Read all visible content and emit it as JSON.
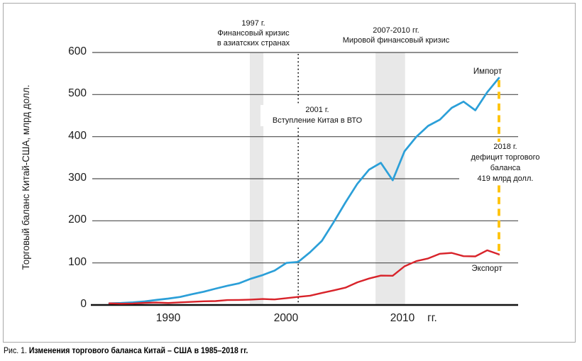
{
  "figure_caption": {
    "prefix": "Рис. 1.",
    "title": "Изменения торгового баланса Китай – США в 1985–2018 гг."
  },
  "axis": {
    "y_label": "Торговый баланс Китай-США, млрд долл.",
    "y_ticks": [
      "600",
      "500",
      "400",
      "300",
      "200",
      "100",
      "0"
    ],
    "x_ticks": [
      "1990",
      "2000",
      "2010"
    ],
    "x_unit": "гг."
  },
  "series_labels": {
    "import": "Импорт",
    "export": "Экспорт"
  },
  "annotations": {
    "asian_crisis": [
      "1997 г.",
      "Финансовый кризис",
      "в азиатских странах"
    ],
    "global_crisis": [
      "2007-2010 гг.",
      "Мировой финансовый кризис"
    ],
    "wto": [
      "2001 г.",
      "Вступление Китая в ВТО"
    ],
    "deficit": [
      "2018 г.",
      "дефицит торгового",
      "баланса",
      "419 млрд долл."
    ]
  },
  "chart_data": {
    "type": "line",
    "title": "",
    "ylabel": "Торговый баланс Китай-США, млрд долл.",
    "xlabel": "гг.",
    "ylim": [
      0,
      600
    ],
    "xlim": [
      1985,
      2018
    ],
    "y_ticks": [
      0,
      100,
      200,
      300,
      400,
      500,
      600
    ],
    "x_ticks": [
      1990,
      2000,
      2010
    ],
    "grid": "horizontal",
    "legend_position": "inline-right",
    "x": [
      1985,
      1986,
      1987,
      1988,
      1989,
      1990,
      1991,
      1992,
      1993,
      1994,
      1995,
      1996,
      1997,
      1998,
      1999,
      2000,
      2001,
      2002,
      2003,
      2004,
      2005,
      2006,
      2007,
      2008,
      2009,
      2010,
      2011,
      2012,
      2013,
      2014,
      2015,
      2016,
      2017,
      2018
    ],
    "series": [
      {
        "name": "Импорт",
        "color": "#2B9FD8",
        "values": [
          3.9,
          4.8,
          6.3,
          8.5,
          12.0,
          15.2,
          19.0,
          25.7,
          31.5,
          38.8,
          45.6,
          51.5,
          62.6,
          71.2,
          81.8,
          100.0,
          102.3,
          125.2,
          152.4,
          196.7,
          243.5,
          287.8,
          321.5,
          337.8,
          296.4,
          365.0,
          399.4,
          425.6,
          440.4,
          468.5,
          483.2,
          462.6,
          505.5,
          539.5
        ]
      },
      {
        "name": "Экспорт",
        "color": "#D8232A",
        "values": [
          3.9,
          3.1,
          3.5,
          5.0,
          5.8,
          4.8,
          6.3,
          7.4,
          8.8,
          9.3,
          11.7,
          12.0,
          12.8,
          14.2,
          13.1,
          16.2,
          19.2,
          22.1,
          28.4,
          34.7,
          41.2,
          53.7,
          62.9,
          69.7,
          69.5,
          91.9,
          104.1,
          110.5,
          121.7,
          123.7,
          115.9,
          115.5,
          129.9,
          120.3
        ]
      }
    ],
    "shaded_bands": [
      {
        "x_start": 1996.9,
        "x_end": 1998.05,
        "color": "#E8E8E8",
        "label": "1997 г. Финансовый кризис в азиатских странах"
      },
      {
        "x_start": 2007.55,
        "x_end": 2010.05,
        "color": "#E8E8E8",
        "label": "2007-2010 гг. Мировой финансовый кризис"
      }
    ],
    "event_lines": [
      {
        "x": 2001,
        "style": "dotted",
        "color": "#1a1a1a",
        "label": "2001 г. Вступление Китая в ВТО"
      },
      {
        "x": 2018,
        "style": "dashed",
        "color": "#FFC30B",
        "y_from": 539.5,
        "y_to": 120.3,
        "label": "2018 г. дефицит торгового баланса 419 млрд долл."
      }
    ]
  }
}
